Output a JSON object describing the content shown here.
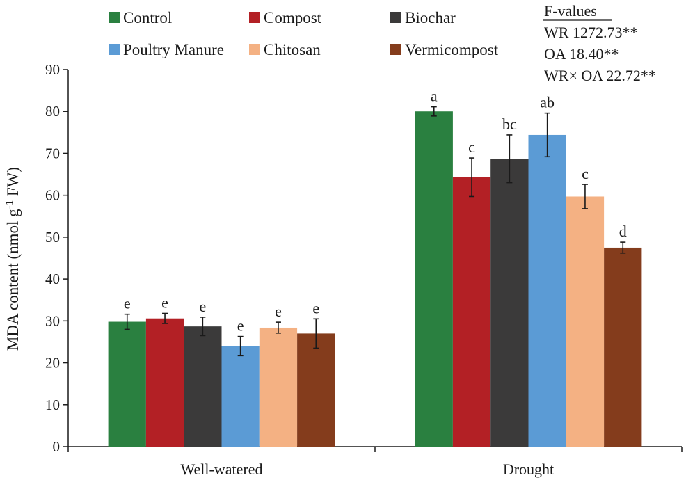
{
  "chart_data": {
    "type": "bar",
    "title": "",
    "xlabel": "",
    "ylabel": {
      "prefix": "MDA content (nmol g",
      "superscript": "-1",
      "suffix": " FW)"
    },
    "ylim": [
      0,
      90
    ],
    "yticks": [
      0,
      10,
      20,
      30,
      40,
      50,
      60,
      70,
      80,
      90
    ],
    "grid": false,
    "legend_position": "top",
    "categories": [
      "Well-watered",
      "Drought"
    ],
    "series": [
      {
        "name": "Control",
        "color": "#2a8040",
        "values": [
          29.8,
          80.0
        ],
        "errors": [
          1.8,
          1.1
        ],
        "letters": [
          "e",
          "a"
        ]
      },
      {
        "name": "Compost",
        "color": "#b32025",
        "values": [
          30.6,
          64.3
        ],
        "errors": [
          1.2,
          4.6
        ],
        "letters": [
          "e",
          "c"
        ]
      },
      {
        "name": "Biochar",
        "color": "#3b3a3a",
        "values": [
          28.7,
          68.7
        ],
        "errors": [
          2.2,
          5.7
        ],
        "letters": [
          "e",
          "bc"
        ]
      },
      {
        "name": "Poultry Manure",
        "color": "#5b9bd5",
        "values": [
          24.0,
          74.4
        ],
        "errors": [
          2.3,
          5.2
        ],
        "letters": [
          "e",
          "ab"
        ]
      },
      {
        "name": "Chitosan",
        "color": "#f4b183",
        "values": [
          28.4,
          59.7
        ],
        "errors": [
          1.3,
          2.9
        ],
        "letters": [
          "e",
          "c"
        ]
      },
      {
        "name": "Vermicompost",
        "color": "#843c1c",
        "values": [
          27.0,
          47.5
        ],
        "errors": [
          3.5,
          1.3
        ],
        "letters": [
          "e",
          "d"
        ]
      }
    ],
    "stats": {
      "heading": "F-values",
      "lines": [
        "WR 1272.73**",
        "OA 18.40**",
        "WR× OA 22.72**"
      ]
    }
  }
}
